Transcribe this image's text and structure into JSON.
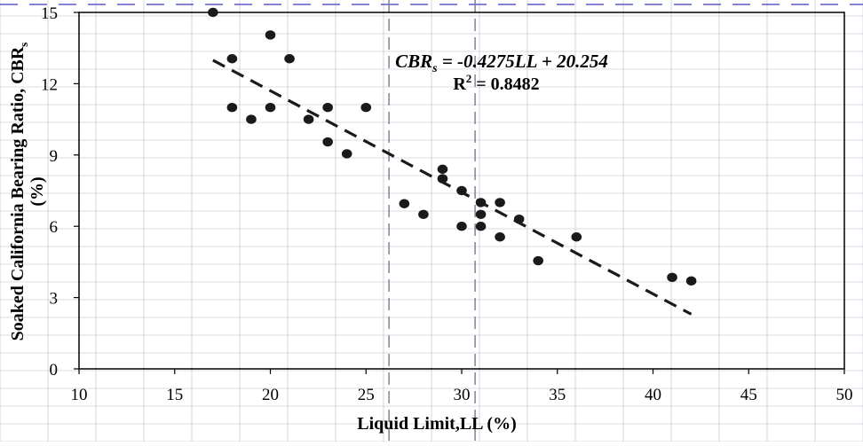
{
  "chart_data": {
    "type": "scatter",
    "title": "",
    "xlabel": "Liquid Limit,LL (%)",
    "ylabel_line1": "Soaked California Bearing Ratio, CBR",
    "ylabel_subscript": "s",
    "ylabel_line2": "(%)",
    "xlim": [
      10,
      50
    ],
    "ylim": [
      0,
      15
    ],
    "xticks": [
      10,
      15,
      20,
      25,
      30,
      35,
      40,
      45,
      50
    ],
    "yticks": [
      0,
      3,
      6,
      9,
      12,
      15
    ],
    "grid": true,
    "legend": "none",
    "series": [
      {
        "x": [
          17,
          18,
          18,
          19,
          20,
          20,
          21,
          22,
          23,
          23,
          24,
          25,
          27,
          28,
          29,
          29,
          30,
          30,
          31,
          31,
          31,
          32,
          32,
          33,
          34,
          36,
          41,
          42
        ],
        "y": [
          15.0,
          13.05,
          11.0,
          10.5,
          14.05,
          11.0,
          13.05,
          10.5,
          11.0,
          9.55,
          9.05,
          11.0,
          6.95,
          6.5,
          8.4,
          8.0,
          7.5,
          6.0,
          7.0,
          6.5,
          6.0,
          7.0,
          5.55,
          6.3,
          4.55,
          5.55,
          3.85,
          3.7
        ]
      }
    ],
    "trendline": {
      "slope": -0.4275,
      "intercept": 20.254,
      "x_range": [
        17,
        42
      ],
      "equation_lhs": "CBR",
      "equation_lhs_sub": "s",
      "equation_rhs": " = -0.4275LL + 20.254",
      "r2_label": "R",
      "r2_sup": "2",
      "r2_rhs": " = 0.8482"
    },
    "reference_lines_x": [
      26.2,
      30.7
    ],
    "colors": {
      "marker": "#1a1a1a",
      "trendline": "#1a1a1a",
      "grid": "#b8b8cc",
      "reference_line": "#7a7a8a",
      "top_border": "#5b5bc8",
      "axis": "#000000"
    }
  }
}
